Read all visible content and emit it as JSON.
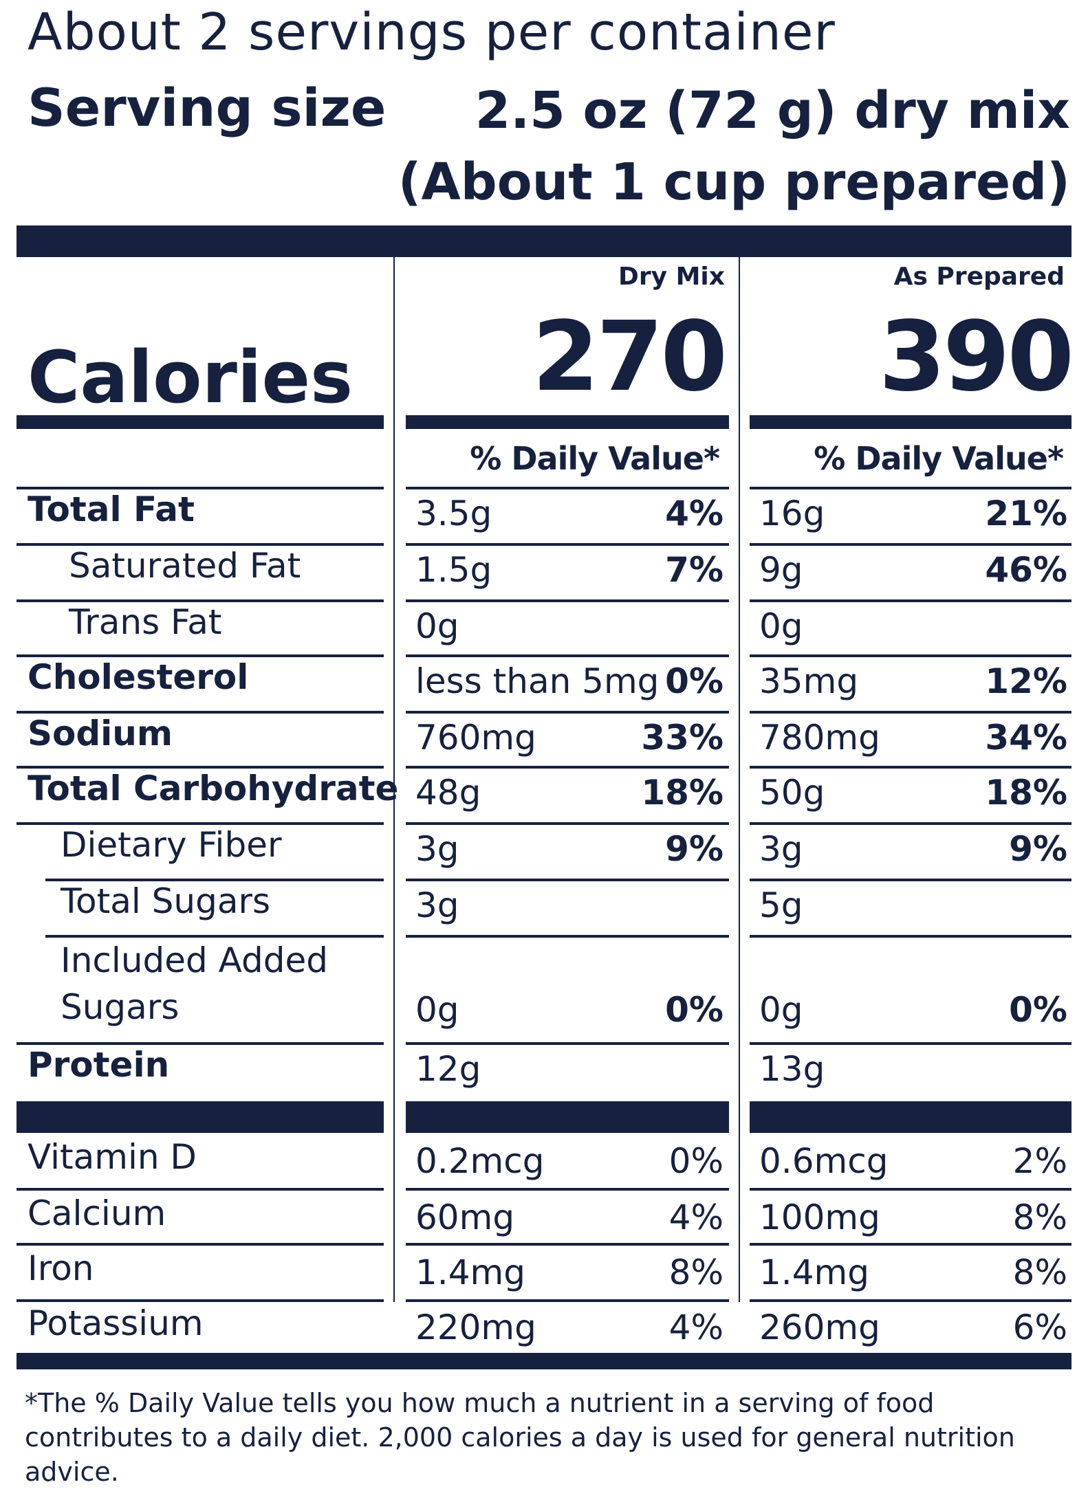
{
  "header": {
    "servings_per_container": "About 2 servings per container",
    "serving_size_label": "Serving size",
    "serving_size_value": "2.5 oz (72 g) dry mix",
    "serving_size_value_2": "(About 1 cup prepared)"
  },
  "calories": {
    "label": "Calories",
    "dry_mix_heading": "Dry Mix",
    "as_prepared_heading": "As Prepared",
    "dry_mix_value": "270",
    "as_prepared_value": "390"
  },
  "daily_value_heading": "% Daily Value*",
  "nutrients": [
    {
      "label": "Total Fat",
      "dry_amount": "3.5g",
      "dry_pct": "4%",
      "prep_amount": "16g",
      "prep_pct": "21%"
    },
    {
      "label": "Saturated Fat",
      "dry_amount": "1.5g",
      "dry_pct": "7%",
      "prep_amount": "9g",
      "prep_pct": "46%"
    },
    {
      "label": "Trans Fat",
      "dry_amount": "0g",
      "dry_pct": "",
      "prep_amount": "0g",
      "prep_pct": ""
    },
    {
      "label": "Cholesterol",
      "dry_amount": "less than 5mg",
      "dry_pct": "0%",
      "prep_amount": "35mg",
      "prep_pct": "12%"
    },
    {
      "label": "Sodium",
      "dry_amount": "760mg",
      "dry_pct": "33%",
      "prep_amount": "780mg",
      "prep_pct": "34%"
    },
    {
      "label": "Total Carbohydrate",
      "dry_amount": "48g",
      "dry_pct": "18%",
      "prep_amount": "50g",
      "prep_pct": "18%"
    },
    {
      "label": "Dietary Fiber",
      "dry_amount": "3g",
      "dry_pct": "9%",
      "prep_amount": "3g",
      "prep_pct": "9%"
    },
    {
      "label": "Total Sugars",
      "dry_amount": "3g",
      "dry_pct": "",
      "prep_amount": "5g",
      "prep_pct": ""
    },
    {
      "label": "Included Added",
      "label_2": "Sugars",
      "dry_amount": "0g",
      "dry_pct": "0%",
      "prep_amount": "0g",
      "prep_pct": "0%"
    },
    {
      "label": "Protein",
      "dry_amount": "12g",
      "dry_pct": "",
      "prep_amount": "13g",
      "prep_pct": ""
    }
  ],
  "vitamins": [
    {
      "label": "Vitamin D",
      "dry_amount": "0.2mcg",
      "dry_pct": "0%",
      "prep_amount": "0.6mcg",
      "prep_pct": "2%"
    },
    {
      "label": "Calcium",
      "dry_amount": "60mg",
      "dry_pct": "4%",
      "prep_amount": "100mg",
      "prep_pct": "8%"
    },
    {
      "label": "Iron",
      "dry_amount": "1.4mg",
      "dry_pct": "8%",
      "prep_amount": "1.4mg",
      "prep_pct": "8%"
    },
    {
      "label": "Potassium",
      "dry_amount": "220mg",
      "dry_pct": "4%",
      "prep_amount": "260mg",
      "prep_pct": "6%"
    }
  ],
  "footnote": "*The % Daily Value tells you how much a nutrient in a serving of food contributes to a daily diet. 2,000 calories a day is used for general nutrition advice.",
  "colors": {
    "ink": "#16213f",
    "background": "#ffffff"
  }
}
